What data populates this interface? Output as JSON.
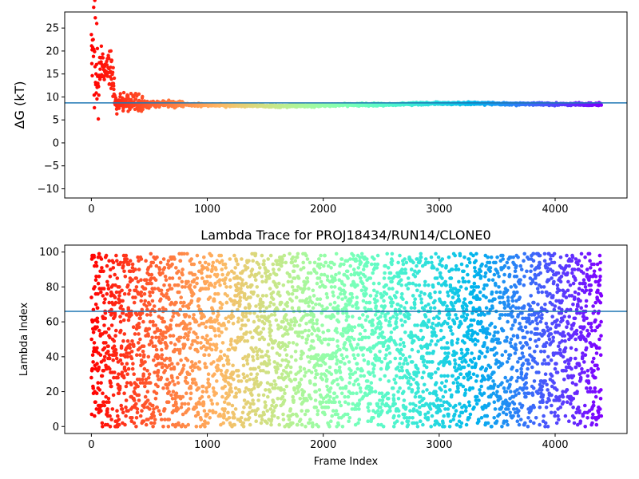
{
  "chart_data": [
    {
      "type": "scatter",
      "title": "",
      "xlabel": "",
      "ylabel": "ΔG (kT)",
      "xlim": [
        -230,
        4620
      ],
      "ylim": [
        -12,
        28.5
      ],
      "xticks": [
        0,
        1000,
        2000,
        3000,
        4000
      ],
      "xtick_labels": [
        "0",
        "1000",
        "2000",
        "3000",
        "4000"
      ],
      "yticks": [
        -10,
        -5,
        0,
        5,
        10,
        15,
        20,
        25
      ],
      "ytick_labels": [
        "−10",
        "−5",
        "0",
        "5",
        "10",
        "15",
        "20",
        "25"
      ],
      "grid": false,
      "colormap": "rainbow (red at frame 0 → violet at last frame)",
      "n_frames": 4400,
      "hline": {
        "y": 8.7,
        "color": "#1f77b4"
      },
      "series": [
        {
          "description_points": {
            "x": [
              10,
              20,
              25,
              30,
              40,
              50,
              60,
              70,
              80,
              90,
              100,
              120,
              140,
              160,
              180,
              200,
              220,
              250,
              300,
              400,
              500,
              600,
              700,
              800,
              900,
              1000,
              1200,
              1400,
              1600,
              1800,
              2000,
              2200,
              2400,
              2600,
              2800,
              3000,
              3200,
              3400,
              3600,
              3800,
              4000,
              4200,
              4400
            ],
            "y": [
              20.0,
              27.5,
              4.0,
              25.0,
              12.0,
              20.0,
              8.0,
              15.0,
              18.0,
              16.0,
              17.0,
              16.5,
              17.0,
              16.0,
              15.0,
              9.5,
              8.5,
              8.5,
              9.0,
              8.5,
              8.6,
              8.6,
              8.5,
              8.4,
              8.3,
              8.2,
              8.2,
              8.1,
              8.0,
              8.1,
              8.2,
              8.3,
              8.3,
              8.4,
              8.5,
              8.6,
              8.6,
              8.6,
              8.5,
              8.5,
              8.4,
              8.4,
              8.4
            ]
          }
        }
      ]
    },
    {
      "type": "scatter",
      "title": "Lambda Trace for PROJ18434/RUN14/CLONE0",
      "xlabel": "Frame Index",
      "ylabel": "Lambda Index",
      "xlim": [
        -230,
        4620
      ],
      "ylim": [
        -4,
        104
      ],
      "xticks": [
        0,
        1000,
        2000,
        3000,
        4000
      ],
      "xtick_labels": [
        "0",
        "1000",
        "2000",
        "3000",
        "4000"
      ],
      "yticks": [
        0,
        20,
        40,
        60,
        80,
        100
      ],
      "ytick_labels": [
        "0",
        "20",
        "40",
        "60",
        "80",
        "100"
      ],
      "grid": false,
      "colormap": "rainbow (red at frame 0 → violet at last frame)",
      "n_frames": 4400,
      "lambda_range": [
        0,
        99
      ],
      "distribution": "uniform random lambda index per frame",
      "hline": {
        "y": 66,
        "color": "#1f77b4"
      }
    }
  ]
}
